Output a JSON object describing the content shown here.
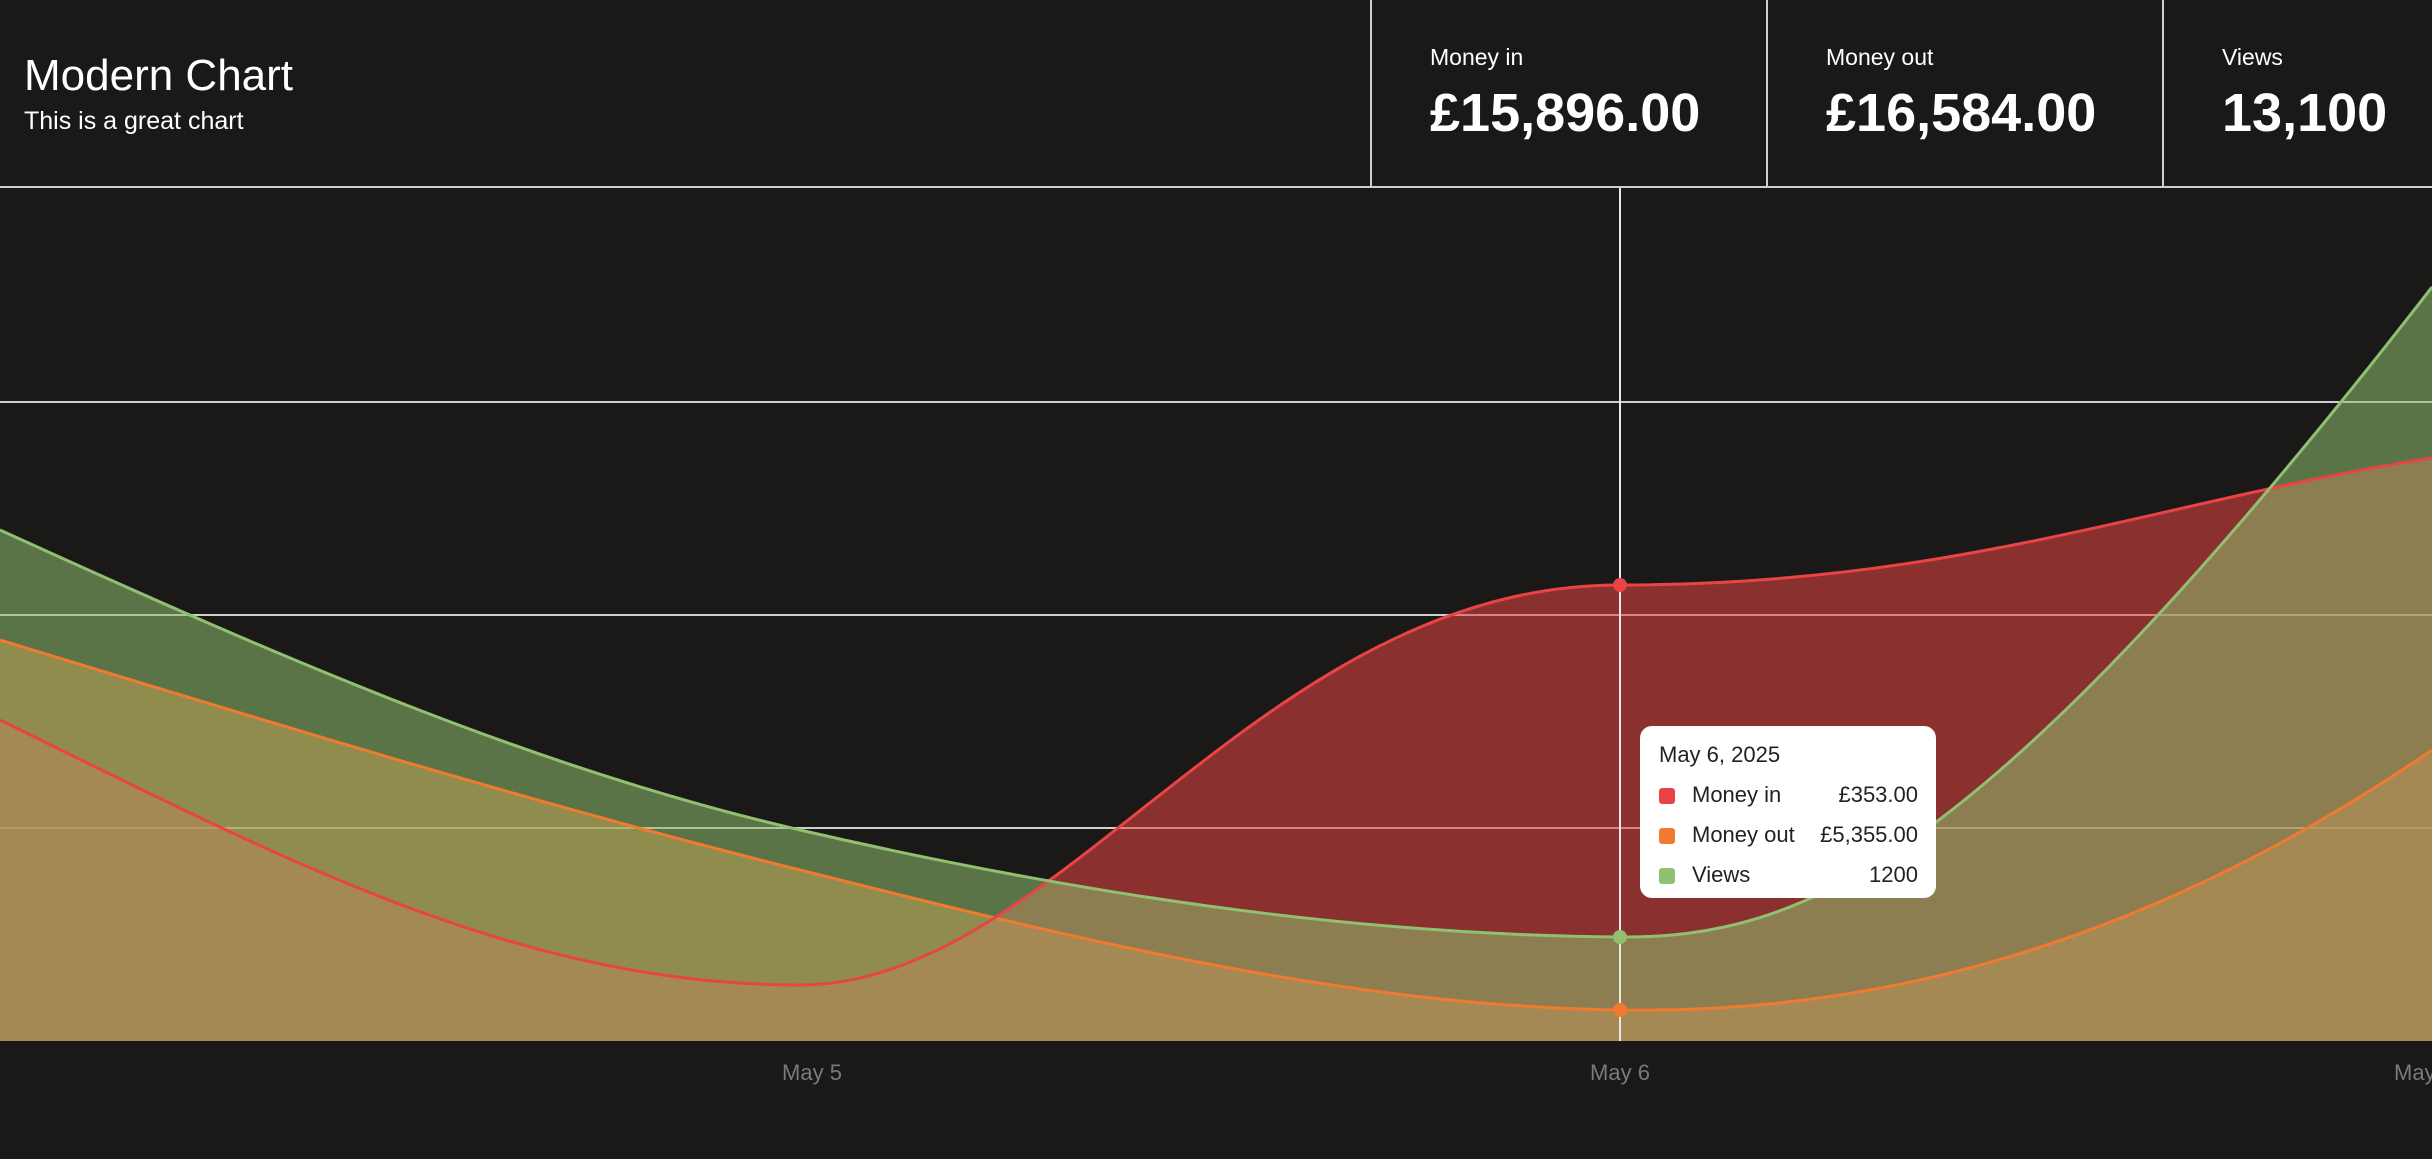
{
  "header": {
    "title": "Modern Chart",
    "subtitle": "This is a great chart"
  },
  "stats": [
    {
      "label": "Money in",
      "value": "£15,896.00"
    },
    {
      "label": "Money out",
      "value": "£16,584.00"
    },
    {
      "label": "Views",
      "value": "13,100"
    }
  ],
  "tooltip": {
    "date": "May 6, 2025",
    "rows": [
      {
        "name": "Money in",
        "value": "£353.00",
        "color": "#e84444"
      },
      {
        "name": "Money out",
        "value": "£5,355.00",
        "color": "#f07a30"
      },
      {
        "name": "Views",
        "value": "1200",
        "color": "#90c070"
      }
    ]
  },
  "colors": {
    "money_in": "#e84444",
    "money_out": "#f07a30",
    "views": "#90c070",
    "background": "#1a1918",
    "gridline": "#cfcfcf"
  },
  "chart_data": {
    "type": "area",
    "x_tick_labels": [
      "May 5",
      "May 6",
      "May"
    ],
    "active_category": "May 6",
    "grid": true,
    "legend": "none",
    "series": [
      {
        "name": "Money in",
        "color": "#e84444"
      },
      {
        "name": "Money out",
        "color": "#f07a30"
      },
      {
        "name": "Views",
        "color": "#90c070"
      }
    ]
  }
}
